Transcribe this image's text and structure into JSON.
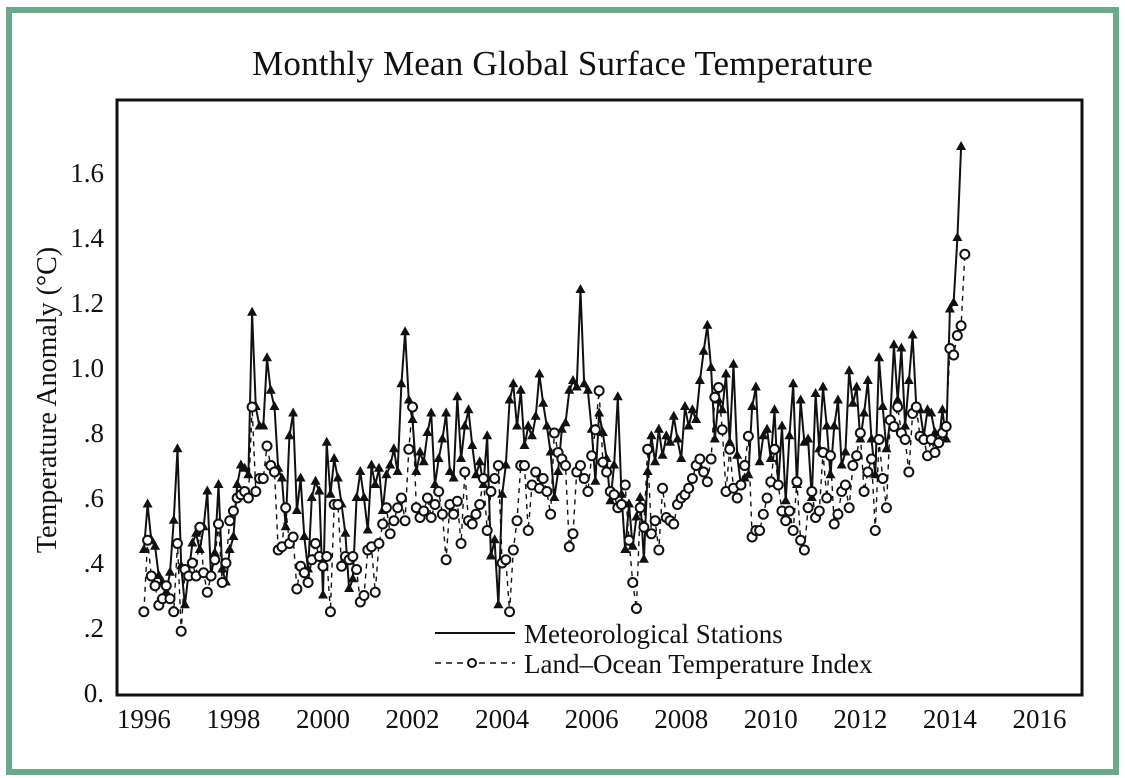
{
  "chart_data": {
    "type": "line",
    "title": "Monthly Mean Global Surface Temperature",
    "xlabel": "",
    "ylabel": "Temperature Anomaly (°C)",
    "xlim": [
      1995.4,
      2016.95
    ],
    "ylim": [
      0.0,
      1.8
    ],
    "x_ticks": [
      1996,
      1998,
      2000,
      2002,
      2004,
      2006,
      2008,
      2010,
      2012,
      2014,
      2016
    ],
    "x_tick_labels": [
      "1996",
      "1998",
      "2000",
      "2002",
      "2004",
      "2006",
      "2008",
      "2010",
      "2012",
      "2014",
      "2016"
    ],
    "y_ticks": [
      0.0,
      0.2,
      0.4,
      0.6,
      0.8,
      1.0,
      1.2,
      1.4,
      1.6
    ],
    "y_tick_labels": [
      "0.",
      ".2",
      ".4",
      ".6",
      ".8",
      "1.0",
      "1.2",
      "1.4",
      "1.6"
    ],
    "grid": false,
    "legend_position": "bottom-right",
    "x_start": 1996.0,
    "x_step_months": 1,
    "series": [
      {
        "name": "Meteorological Stations",
        "style": "solid-triangle",
        "values": [
          0.44,
          0.58,
          0.47,
          0.45,
          0.36,
          0.34,
          0.31,
          0.37,
          0.53,
          0.75,
          0.39,
          0.27,
          0.37,
          0.46,
          0.49,
          0.44,
          0.51,
          0.62,
          0.36,
          0.43,
          0.64,
          0.38,
          0.34,
          0.44,
          0.48,
          0.64,
          0.7,
          0.69,
          0.67,
          1.17,
          0.88,
          0.82,
          0.82,
          1.03,
          0.93,
          0.88,
          0.69,
          0.66,
          0.51,
          0.79,
          0.86,
          0.56,
          0.66,
          0.48,
          0.38,
          0.6,
          0.65,
          0.62,
          0.3,
          0.77,
          0.61,
          0.72,
          0.66,
          0.58,
          0.49,
          0.32,
          0.35,
          0.6,
          0.68,
          0.6,
          0.5,
          0.7,
          0.64,
          0.69,
          0.56,
          0.67,
          0.7,
          0.75,
          0.68,
          0.95,
          1.11,
          0.9,
          0.84,
          0.68,
          0.74,
          0.71,
          0.8,
          0.86,
          0.64,
          0.72,
          0.78,
          0.86,
          0.68,
          0.66,
          0.91,
          0.72,
          0.82,
          0.87,
          0.76,
          0.67,
          0.71,
          0.64,
          0.79,
          0.42,
          0.47,
          0.27,
          0.61,
          0.7,
          0.9,
          0.95,
          0.82,
          0.93,
          0.76,
          0.82,
          0.79,
          0.85,
          0.98,
          0.89,
          0.82,
          0.74,
          0.6,
          0.68,
          0.81,
          0.83,
          0.93,
          0.96,
          0.94,
          1.24,
          0.95,
          0.93,
          0.81,
          0.65,
          0.86,
          0.8,
          0.72,
          0.59,
          0.7,
          0.91,
          0.61,
          0.44,
          0.58,
          0.45,
          0.54,
          0.6,
          0.41,
          0.68,
          0.79,
          0.71,
          0.81,
          0.73,
          0.79,
          0.77,
          0.85,
          0.78,
          0.72,
          0.88,
          0.82,
          0.87,
          0.84,
          0.96,
          1.05,
          1.13,
          1.0,
          0.78,
          0.9,
          0.87,
          0.98,
          0.77,
          1.01,
          0.73,
          0.64,
          0.66,
          0.67,
          0.88,
          0.94,
          0.71,
          0.79,
          0.81,
          0.72,
          0.87,
          0.64,
          0.82,
          0.59,
          0.79,
          0.95,
          0.64,
          0.9,
          0.77,
          0.78,
          0.6,
          0.92,
          0.75,
          0.94,
          0.82,
          0.67,
          0.82,
          0.9,
          0.7,
          0.74,
          0.99,
          0.89,
          0.94,
          0.78,
          0.86,
          0.96,
          0.78,
          0.67,
          1.03,
          0.88,
          0.75,
          0.84,
          1.07,
          0.9,
          1.06,
          0.82,
          0.96,
          1.1,
          0.88,
          0.87,
          0.79,
          0.87,
          0.86,
          0.8,
          0.77,
          0.87,
          0.78,
          1.18,
          1.2,
          1.4,
          1.68
        ]
      },
      {
        "name": "Land–Ocean Temperature Index",
        "style": "dashed-circle",
        "values": [
          0.25,
          0.47,
          0.36,
          0.33,
          0.27,
          0.29,
          0.33,
          0.29,
          0.25,
          0.46,
          0.19,
          0.38,
          0.36,
          0.4,
          0.36,
          0.51,
          0.37,
          0.31,
          0.36,
          0.41,
          0.52,
          0.34,
          0.4,
          0.53,
          0.56,
          0.6,
          0.61,
          0.62,
          0.6,
          0.88,
          0.62,
          0.66,
          0.66,
          0.76,
          0.7,
          0.68,
          0.44,
          0.45,
          0.57,
          0.46,
          0.48,
          0.32,
          0.39,
          0.37,
          0.34,
          0.41,
          0.46,
          0.42,
          0.39,
          0.42,
          0.25,
          0.58,
          0.58,
          0.39,
          0.42,
          0.41,
          0.42,
          0.38,
          0.28,
          0.3,
          0.44,
          0.45,
          0.31,
          0.46,
          0.52,
          0.57,
          0.49,
          0.53,
          0.57,
          0.6,
          0.53,
          0.75,
          0.88,
          0.57,
          0.54,
          0.56,
          0.6,
          0.54,
          0.58,
          0.62,
          0.55,
          0.41,
          0.58,
          0.55,
          0.59,
          0.46,
          0.68,
          0.53,
          0.52,
          0.55,
          0.58,
          0.66,
          0.5,
          0.62,
          0.66,
          0.7,
          0.4,
          0.41,
          0.25,
          0.44,
          0.53,
          0.7,
          0.7,
          0.5,
          0.64,
          0.68,
          0.63,
          0.66,
          0.62,
          0.55,
          0.8,
          0.74,
          0.72,
          0.7,
          0.45,
          0.49,
          0.68,
          0.7,
          0.66,
          0.62,
          0.73,
          0.81,
          0.93,
          0.71,
          0.68,
          0.62,
          0.61,
          0.57,
          0.58,
          0.64,
          0.47,
          0.34,
          0.26,
          0.57,
          0.51,
          0.75,
          0.49,
          0.53,
          0.44,
          0.63,
          0.54,
          0.53,
          0.52,
          0.58,
          0.6,
          0.61,
          0.63,
          0.66,
          0.7,
          0.72,
          0.68,
          0.65,
          0.72,
          0.91,
          0.94,
          0.81,
          0.62,
          0.75,
          0.63,
          0.6,
          0.64,
          0.7,
          0.79,
          0.48,
          0.5,
          0.5,
          0.55,
          0.6,
          0.65,
          0.75,
          0.64,
          0.56,
          0.53,
          0.56,
          0.5,
          0.65,
          0.47,
          0.44,
          0.57,
          0.62,
          0.54,
          0.56,
          0.74,
          0.6,
          0.73,
          0.52,
          0.55,
          0.62,
          0.64,
          0.57,
          0.7,
          0.73,
          0.8,
          0.62,
          0.68,
          0.72,
          0.5,
          0.78,
          0.66,
          0.57,
          0.84,
          0.82,
          0.88,
          0.8,
          0.78,
          0.68,
          0.86,
          0.88,
          0.79,
          0.78,
          0.73,
          0.78,
          0.74,
          0.77,
          0.8,
          0.82,
          1.06,
          1.04,
          1.1,
          1.13,
          1.35
        ]
      }
    ],
    "legend": [
      {
        "label": "Meteorological Stations",
        "style": "solid"
      },
      {
        "label": "Land–Ocean Temperature Index",
        "style": "dashed-circle"
      }
    ]
  },
  "colors": {
    "frame": "#6aaa8a",
    "ink": "#111111",
    "background": "#ffffff"
  }
}
